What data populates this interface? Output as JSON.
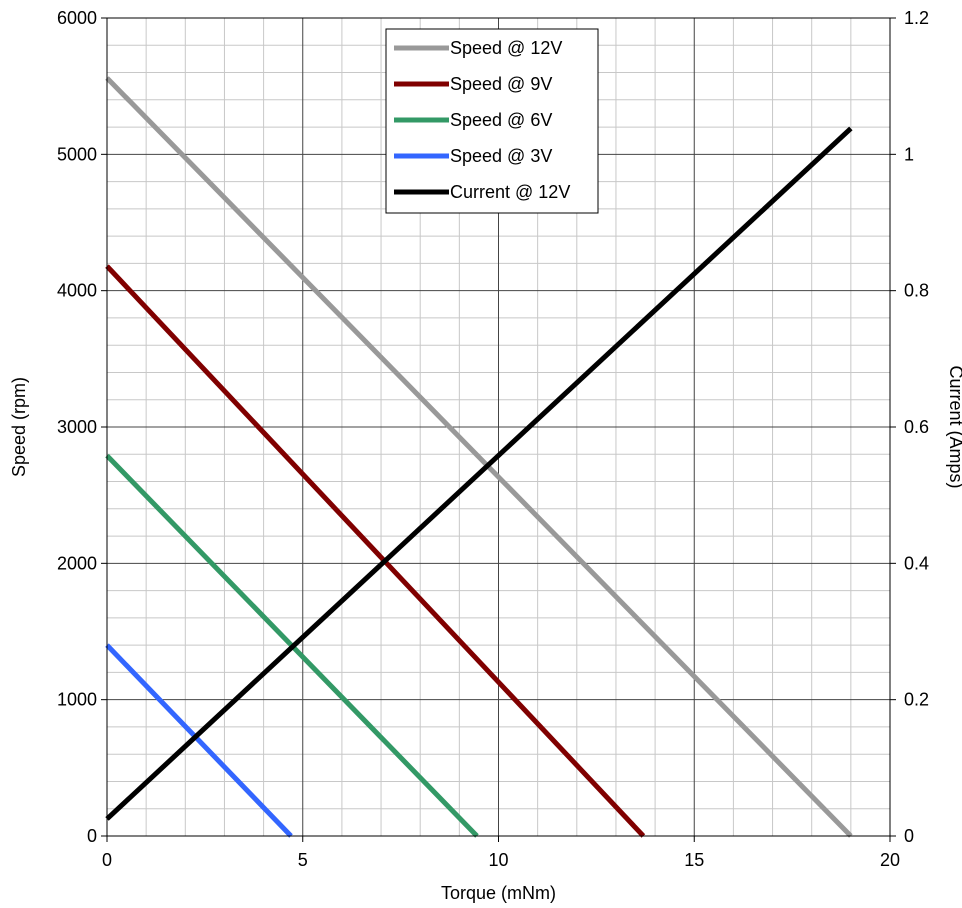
{
  "chart_data": {
    "type": "line",
    "title": "",
    "xlabel": "Torque (mNm)",
    "ylabel": "Speed (rpm)",
    "y2label": "Current (Amps)",
    "xlim": [
      0,
      20
    ],
    "ylim": [
      0,
      6000
    ],
    "y2lim": [
      0,
      1.2
    ],
    "x_ticks": [
      "0",
      "5",
      "10",
      "15",
      "20"
    ],
    "y_ticks": [
      "0",
      "1000",
      "2000",
      "3000",
      "4000",
      "5000",
      "6000"
    ],
    "y2_ticks": [
      "0",
      "0.2",
      "0.4",
      "0.6",
      "0.8",
      "1",
      "1.2"
    ],
    "grid": true,
    "legend_position": "top-center",
    "series": [
      {
        "name": "Speed @ 12V",
        "axis": "left",
        "color": "#999999",
        "x": [
          0,
          19.0
        ],
        "y": [
          5560,
          0
        ]
      },
      {
        "name": "Speed @ 9V",
        "axis": "left",
        "color": "#800000",
        "x": [
          0,
          13.7
        ],
        "y": [
          4180,
          0
        ]
      },
      {
        "name": "Speed @ 6V",
        "axis": "left",
        "color": "#339966",
        "x": [
          0,
          9.45
        ],
        "y": [
          2790,
          0
        ]
      },
      {
        "name": "Speed @ 3V",
        "axis": "left",
        "color": "#3366ff",
        "x": [
          0,
          4.7
        ],
        "y": [
          1400,
          0
        ]
      },
      {
        "name": "Current @ 12V",
        "axis": "right",
        "color": "#000000",
        "x": [
          0,
          19.0
        ],
        "y": [
          0.025,
          1.038
        ]
      }
    ]
  }
}
